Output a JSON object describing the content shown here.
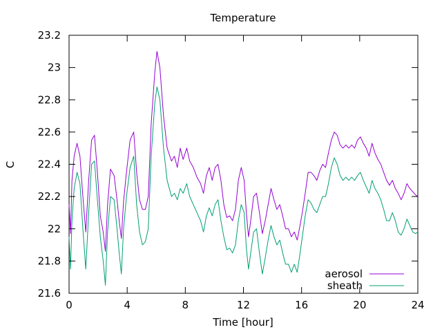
{
  "chart_data": {
    "type": "line",
    "title": "Temperature",
    "xlabel": "Time [hour]",
    "ylabel": "C",
    "xlim": [
      0,
      24
    ],
    "ylim": [
      21.6,
      23.2
    ],
    "xticks": [
      0,
      4,
      8,
      12,
      16,
      20,
      24
    ],
    "yticks": [
      21.6,
      21.8,
      22,
      22.2,
      22.4,
      22.6,
      22.8,
      23,
      23.2
    ],
    "ytick_labels": [
      "21.6",
      "21.8",
      "22",
      "22.2",
      "22.4",
      "22.6",
      "22.8",
      "23",
      "23.2"
    ],
    "grid": false,
    "legend_position": "bottom-right",
    "series": [
      {
        "name": "aerosol",
        "color": "#9400d3",
        "points": [
          [
            0.0,
            22.15
          ],
          [
            0.1,
            21.97
          ],
          [
            0.2,
            22.3
          ],
          [
            0.35,
            22.45
          ],
          [
            0.55,
            22.53
          ],
          [
            0.75,
            22.45
          ],
          [
            0.95,
            22.2
          ],
          [
            1.15,
            21.98
          ],
          [
            1.35,
            22.3
          ],
          [
            1.55,
            22.55
          ],
          [
            1.75,
            22.58
          ],
          [
            1.95,
            22.35
          ],
          [
            2.15,
            22.08
          ],
          [
            2.35,
            21.98
          ],
          [
            2.5,
            21.86
          ],
          [
            2.65,
            22.15
          ],
          [
            2.85,
            22.37
          ],
          [
            3.1,
            22.33
          ],
          [
            3.3,
            22.18
          ],
          [
            3.45,
            22.05
          ],
          [
            3.6,
            21.94
          ],
          [
            3.75,
            22.17
          ],
          [
            3.95,
            22.35
          ],
          [
            4.2,
            22.55
          ],
          [
            4.45,
            22.6
          ],
          [
            4.65,
            22.35
          ],
          [
            4.85,
            22.18
          ],
          [
            5.05,
            22.12
          ],
          [
            5.25,
            22.12
          ],
          [
            5.45,
            22.2
          ],
          [
            5.65,
            22.65
          ],
          [
            5.9,
            22.97
          ],
          [
            6.05,
            23.1
          ],
          [
            6.25,
            23.0
          ],
          [
            6.5,
            22.7
          ],
          [
            6.75,
            22.5
          ],
          [
            7.05,
            22.42
          ],
          [
            7.25,
            22.45
          ],
          [
            7.45,
            22.38
          ],
          [
            7.65,
            22.5
          ],
          [
            7.85,
            22.43
          ],
          [
            8.1,
            22.5
          ],
          [
            8.3,
            22.42
          ],
          [
            8.55,
            22.38
          ],
          [
            8.8,
            22.32
          ],
          [
            9.05,
            22.28
          ],
          [
            9.25,
            22.22
          ],
          [
            9.45,
            22.33
          ],
          [
            9.65,
            22.38
          ],
          [
            9.85,
            22.3
          ],
          [
            10.05,
            22.38
          ],
          [
            10.25,
            22.4
          ],
          [
            10.45,
            22.3
          ],
          [
            10.65,
            22.15
          ],
          [
            10.85,
            22.07
          ],
          [
            11.05,
            22.08
          ],
          [
            11.25,
            22.05
          ],
          [
            11.45,
            22.12
          ],
          [
            11.65,
            22.3
          ],
          [
            11.85,
            22.38
          ],
          [
            12.05,
            22.3
          ],
          [
            12.2,
            22.1
          ],
          [
            12.35,
            21.95
          ],
          [
            12.5,
            22.05
          ],
          [
            12.7,
            22.2
          ],
          [
            12.9,
            22.22
          ],
          [
            13.1,
            22.1
          ],
          [
            13.3,
            21.97
          ],
          [
            13.5,
            22.05
          ],
          [
            13.7,
            22.15
          ],
          [
            13.9,
            22.25
          ],
          [
            14.1,
            22.18
          ],
          [
            14.3,
            22.12
          ],
          [
            14.5,
            22.15
          ],
          [
            14.7,
            22.08
          ],
          [
            14.9,
            22.0
          ],
          [
            15.1,
            22.0
          ],
          [
            15.3,
            21.95
          ],
          [
            15.5,
            21.98
          ],
          [
            15.7,
            21.93
          ],
          [
            15.85,
            22.0
          ],
          [
            16.05,
            22.1
          ],
          [
            16.25,
            22.22
          ],
          [
            16.45,
            22.35
          ],
          [
            16.65,
            22.35
          ],
          [
            16.85,
            22.33
          ],
          [
            17.05,
            22.3
          ],
          [
            17.25,
            22.36
          ],
          [
            17.45,
            22.4
          ],
          [
            17.65,
            22.38
          ],
          [
            17.85,
            22.47
          ],
          [
            18.05,
            22.55
          ],
          [
            18.25,
            22.6
          ],
          [
            18.45,
            22.58
          ],
          [
            18.65,
            22.52
          ],
          [
            18.85,
            22.5
          ],
          [
            19.05,
            22.52
          ],
          [
            19.25,
            22.5
          ],
          [
            19.45,
            22.52
          ],
          [
            19.65,
            22.5
          ],
          [
            19.85,
            22.55
          ],
          [
            20.05,
            22.57
          ],
          [
            20.25,
            22.53
          ],
          [
            20.45,
            22.5
          ],
          [
            20.65,
            22.45
          ],
          [
            20.85,
            22.53
          ],
          [
            21.05,
            22.47
          ],
          [
            21.25,
            22.43
          ],
          [
            21.45,
            22.4
          ],
          [
            21.65,
            22.35
          ],
          [
            21.85,
            22.3
          ],
          [
            22.05,
            22.27
          ],
          [
            22.25,
            22.3
          ],
          [
            22.45,
            22.25
          ],
          [
            22.65,
            22.22
          ],
          [
            22.85,
            22.18
          ],
          [
            23.05,
            22.22
          ],
          [
            23.25,
            22.28
          ],
          [
            23.45,
            22.25
          ],
          [
            23.65,
            22.23
          ],
          [
            23.85,
            22.21
          ],
          [
            24.0,
            22.2
          ]
        ]
      },
      {
        "name": "sheath",
        "color": "#009e73",
        "points": [
          [
            0.0,
            21.95
          ],
          [
            0.1,
            21.75
          ],
          [
            0.2,
            22.05
          ],
          [
            0.35,
            22.25
          ],
          [
            0.55,
            22.35
          ],
          [
            0.75,
            22.28
          ],
          [
            0.95,
            22.0
          ],
          [
            1.15,
            21.75
          ],
          [
            1.35,
            22.1
          ],
          [
            1.55,
            22.4
          ],
          [
            1.75,
            22.42
          ],
          [
            1.95,
            22.18
          ],
          [
            2.15,
            21.95
          ],
          [
            2.35,
            21.8
          ],
          [
            2.5,
            21.65
          ],
          [
            2.65,
            21.98
          ],
          [
            2.85,
            22.2
          ],
          [
            3.1,
            22.18
          ],
          [
            3.3,
            22.0
          ],
          [
            3.45,
            21.85
          ],
          [
            3.6,
            21.72
          ],
          [
            3.75,
            22.0
          ],
          [
            3.95,
            22.2
          ],
          [
            4.2,
            22.38
          ],
          [
            4.45,
            22.45
          ],
          [
            4.65,
            22.15
          ],
          [
            4.85,
            21.98
          ],
          [
            5.05,
            21.9
          ],
          [
            5.25,
            21.92
          ],
          [
            5.45,
            22.0
          ],
          [
            5.65,
            22.45
          ],
          [
            5.9,
            22.78
          ],
          [
            6.05,
            22.88
          ],
          [
            6.25,
            22.8
          ],
          [
            6.5,
            22.5
          ],
          [
            6.75,
            22.3
          ],
          [
            7.05,
            22.2
          ],
          [
            7.25,
            22.22
          ],
          [
            7.45,
            22.18
          ],
          [
            7.65,
            22.25
          ],
          [
            7.85,
            22.22
          ],
          [
            8.1,
            22.28
          ],
          [
            8.3,
            22.2
          ],
          [
            8.55,
            22.15
          ],
          [
            8.8,
            22.1
          ],
          [
            9.05,
            22.05
          ],
          [
            9.25,
            21.98
          ],
          [
            9.45,
            22.08
          ],
          [
            9.65,
            22.13
          ],
          [
            9.85,
            22.08
          ],
          [
            10.05,
            22.15
          ],
          [
            10.25,
            22.18
          ],
          [
            10.45,
            22.05
          ],
          [
            10.65,
            21.95
          ],
          [
            10.85,
            21.87
          ],
          [
            11.05,
            21.88
          ],
          [
            11.25,
            21.85
          ],
          [
            11.45,
            21.9
          ],
          [
            11.65,
            22.05
          ],
          [
            11.85,
            22.15
          ],
          [
            12.05,
            22.1
          ],
          [
            12.2,
            21.88
          ],
          [
            12.35,
            21.75
          ],
          [
            12.5,
            21.85
          ],
          [
            12.7,
            21.98
          ],
          [
            12.9,
            22.0
          ],
          [
            13.1,
            21.85
          ],
          [
            13.3,
            21.72
          ],
          [
            13.5,
            21.82
          ],
          [
            13.7,
            21.93
          ],
          [
            13.9,
            22.02
          ],
          [
            14.1,
            21.95
          ],
          [
            14.3,
            21.9
          ],
          [
            14.5,
            21.93
          ],
          [
            14.7,
            21.85
          ],
          [
            14.9,
            21.78
          ],
          [
            15.1,
            21.78
          ],
          [
            15.3,
            21.73
          ],
          [
            15.5,
            21.78
          ],
          [
            15.7,
            21.73
          ],
          [
            15.85,
            21.82
          ],
          [
            16.05,
            21.95
          ],
          [
            16.25,
            22.08
          ],
          [
            16.45,
            22.18
          ],
          [
            16.65,
            22.16
          ],
          [
            16.85,
            22.12
          ],
          [
            17.05,
            22.1
          ],
          [
            17.25,
            22.15
          ],
          [
            17.45,
            22.2
          ],
          [
            17.65,
            22.2
          ],
          [
            17.85,
            22.28
          ],
          [
            18.05,
            22.38
          ],
          [
            18.25,
            22.44
          ],
          [
            18.45,
            22.4
          ],
          [
            18.65,
            22.33
          ],
          [
            18.85,
            22.3
          ],
          [
            19.05,
            22.32
          ],
          [
            19.25,
            22.3
          ],
          [
            19.45,
            22.32
          ],
          [
            19.65,
            22.3
          ],
          [
            19.85,
            22.33
          ],
          [
            20.05,
            22.35
          ],
          [
            20.25,
            22.3
          ],
          [
            20.45,
            22.26
          ],
          [
            20.65,
            22.22
          ],
          [
            20.85,
            22.3
          ],
          [
            21.05,
            22.25
          ],
          [
            21.25,
            22.22
          ],
          [
            21.45,
            22.18
          ],
          [
            21.65,
            22.12
          ],
          [
            21.85,
            22.05
          ],
          [
            22.05,
            22.05
          ],
          [
            22.25,
            22.1
          ],
          [
            22.45,
            22.05
          ],
          [
            22.65,
            21.98
          ],
          [
            22.85,
            21.96
          ],
          [
            23.05,
            22.0
          ],
          [
            23.25,
            22.06
          ],
          [
            23.45,
            22.02
          ],
          [
            23.65,
            21.98
          ],
          [
            23.85,
            21.97
          ],
          [
            24.0,
            21.98
          ]
        ]
      }
    ]
  }
}
